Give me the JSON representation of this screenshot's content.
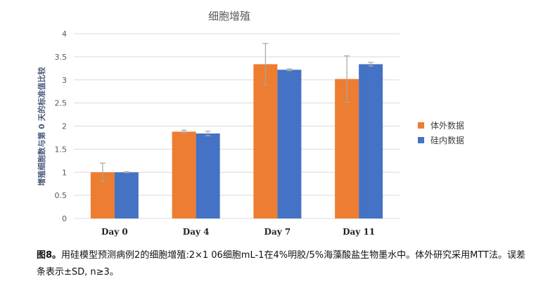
{
  "chart_data": {
    "type": "bar",
    "title": "细胞增殖",
    "xlabel": "",
    "ylabel": "增殖细胞数与第 0 天的标准值比较",
    "ylim": [
      0,
      4
    ],
    "yticks": [
      0,
      0.5,
      1,
      1.5,
      2,
      2.5,
      3,
      3.5,
      4
    ],
    "ytick_labels": [
      "0",
      "0.5",
      "1",
      "1.5",
      "2",
      "2.5",
      "3",
      "3.5",
      "4"
    ],
    "categories": [
      "Day 0",
      "Day 4",
      "Day 7",
      "Day 11"
    ],
    "series": [
      {
        "name": "体外数据",
        "color": "#ed7d31",
        "values": [
          1.0,
          1.88,
          3.34,
          3.02
        ],
        "errors": [
          0.2,
          0.03,
          0.45,
          0.5
        ]
      },
      {
        "name": "硅内数据",
        "color": "#4472c4",
        "values": [
          1.0,
          1.84,
          3.22,
          3.34
        ],
        "errors": [
          0.01,
          0.05,
          0.02,
          0.04
        ]
      }
    ],
    "legend_position": "right",
    "grid": true,
    "gridline_color": "#d9d9d9",
    "errorbar_color": "#a6a6a6"
  },
  "caption": {
    "label": "图8。",
    "text": "用硅模型预测病例2的细胞增殖:2×1 06细胞mL-1在4%明胶/5%海藻酸盐生物墨水中。体外研究采用MTT法。误差条表示±SD, n≥3。"
  }
}
